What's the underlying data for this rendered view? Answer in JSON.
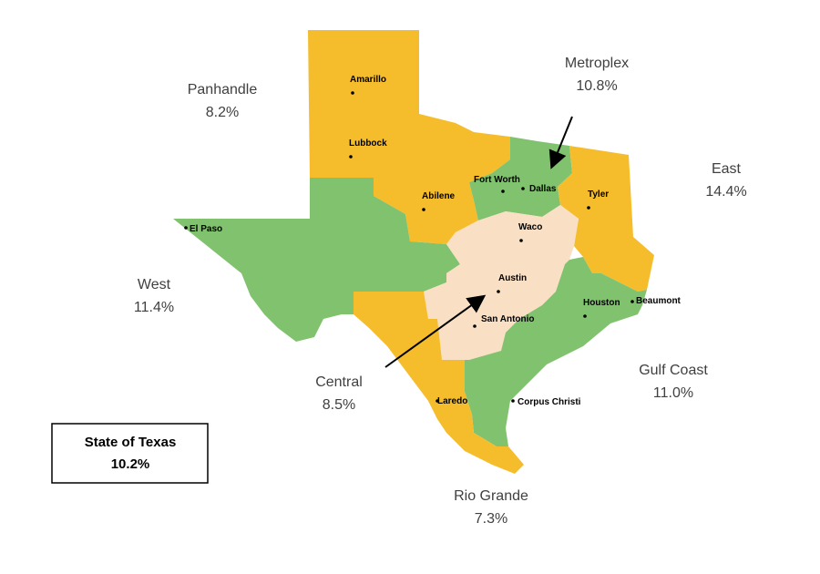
{
  "map": {
    "regions": [
      {
        "name": "Panhandle",
        "value": "8.2%"
      },
      {
        "name": "Metroplex",
        "value": "10.8%"
      },
      {
        "name": "East",
        "value": "14.4%"
      },
      {
        "name": "West",
        "value": "11.4%"
      },
      {
        "name": "Gulf Coast",
        "value": "11.0%"
      },
      {
        "name": "Central",
        "value": "8.5%"
      },
      {
        "name": "Rio Grande",
        "value": "7.3%"
      }
    ],
    "cities": [
      "Amarillo",
      "Lubbock",
      "Fort Worth",
      "Dallas",
      "Abilene",
      "Tyler",
      "El Paso",
      "Waco",
      "Austin",
      "Houston",
      "Beaumont",
      "San Antonio",
      "Laredo",
      "Corpus Christi"
    ],
    "state_box": {
      "name": "State of Texas",
      "value": "10.2%"
    }
  }
}
